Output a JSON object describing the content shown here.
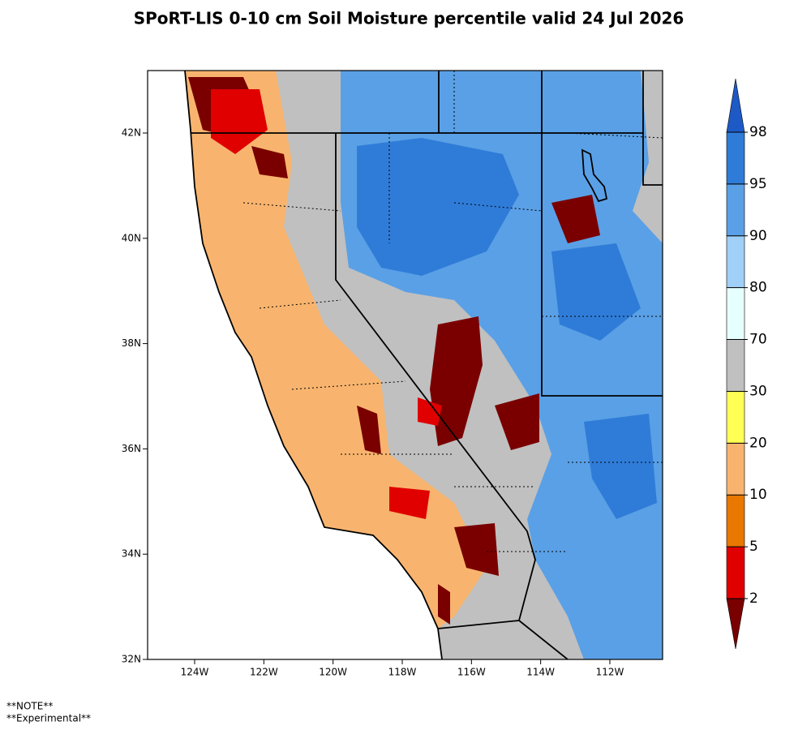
{
  "title": "SPoRT-LIS 0-10 cm Soil Moisture percentile valid 24 Jul 2026",
  "map": {
    "lat_labels": [
      "42N",
      "40N",
      "38N",
      "36N",
      "34N",
      "32N"
    ],
    "lon_labels": [
      "124W",
      "122W",
      "120W",
      "118W",
      "116W",
      "114W",
      "112W"
    ]
  },
  "colorbar": {
    "levels": [
      2,
      5,
      10,
      20,
      30,
      70,
      80,
      90,
      95,
      98
    ],
    "colors": [
      "#7a0000",
      "#e00000",
      "#e87800",
      "#f8b46e",
      "#ffff55",
      "#c0c0c0",
      "#e6ffff",
      "#a0d0f8",
      "#5aa0e6",
      "#2f7cd8",
      "#1e5ac6"
    ]
  },
  "notes": [
    "**NOTE**",
    "**Experimental**"
  ]
}
